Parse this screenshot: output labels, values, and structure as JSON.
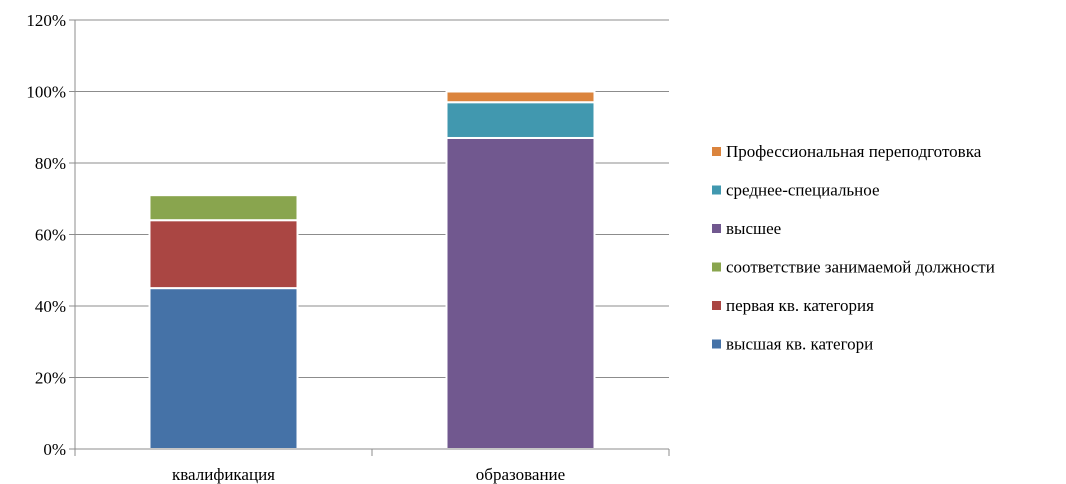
{
  "chart_data": {
    "type": "bar",
    "stacked": true,
    "categories": [
      "квалификация",
      "образование"
    ],
    "series": [
      {
        "name": "высшая кв. категори",
        "color": "#4572A7",
        "values": [
          45,
          0
        ]
      },
      {
        "name": "первая кв. категория",
        "color": "#AA4643",
        "values": [
          19,
          0
        ]
      },
      {
        "name": "соответствие занимаемой должности",
        "color": "#89A54E",
        "values": [
          7,
          0
        ]
      },
      {
        "name": "высшее",
        "color": "#71588F",
        "values": [
          0,
          87
        ]
      },
      {
        "name": "среднее-специальное",
        "color": "#4198AF",
        "values": [
          0,
          10
        ]
      },
      {
        "name": "Профессиональная переподготовка",
        "color": "#DB843D",
        "values": [
          0,
          3
        ]
      }
    ],
    "yticks": [
      "0%",
      "20%",
      "40%",
      "60%",
      "80%",
      "100%",
      "120%"
    ],
    "ylim": [
      0,
      120
    ],
    "grid": true,
    "legend": "right",
    "title": "",
    "xlabel": "",
    "ylabel": ""
  }
}
